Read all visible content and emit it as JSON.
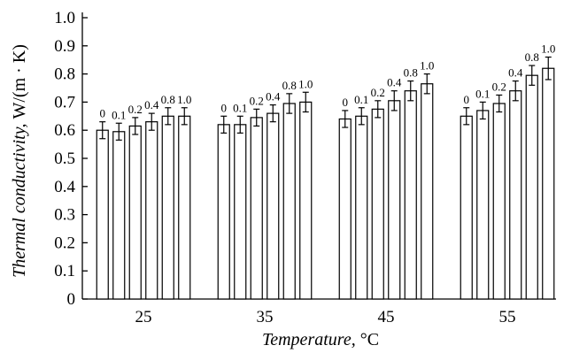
{
  "chart_data": {
    "type": "bar",
    "categories": [
      "25",
      "35",
      "45",
      "55"
    ],
    "series": [
      {
        "name": "0",
        "color": "#ffffff",
        "values": [
          0.6,
          0.62,
          0.64,
          0.65
        ],
        "errors": [
          0.03,
          0.03,
          0.03,
          0.03
        ]
      },
      {
        "name": "0.1",
        "color": "#ffffff",
        "values": [
          0.595,
          0.62,
          0.65,
          0.67
        ],
        "errors": [
          0.03,
          0.03,
          0.03,
          0.03
        ]
      },
      {
        "name": "0.2",
        "color": "#ffffff",
        "values": [
          0.615,
          0.645,
          0.675,
          0.695
        ],
        "errors": [
          0.03,
          0.03,
          0.03,
          0.03
        ]
      },
      {
        "name": "0.4",
        "color": "#ffffff",
        "values": [
          0.63,
          0.66,
          0.705,
          0.74
        ],
        "errors": [
          0.03,
          0.03,
          0.035,
          0.035
        ]
      },
      {
        "name": "0.8",
        "color": "#ffffff",
        "values": [
          0.65,
          0.695,
          0.74,
          0.795
        ],
        "errors": [
          0.03,
          0.035,
          0.035,
          0.035
        ]
      },
      {
        "name": "1.0",
        "color": "#ffffff",
        "values": [
          0.65,
          0.7,
          0.765,
          0.82
        ],
        "errors": [
          0.03,
          0.035,
          0.035,
          0.04
        ]
      }
    ],
    "ylim": [
      0,
      1
    ],
    "yticks": [
      0,
      0.1,
      0.2,
      0.3,
      0.4,
      0.5,
      0.6,
      0.7,
      0.8,
      0.9,
      {
        "value": 1,
        "label": "1.0"
      }
    ],
    "xlabel": "Temperature,",
    "xlabel_unit": "°C",
    "ylabel": "Thermal conductivity,",
    "ylabel_unit": "W/(m · K)"
  }
}
